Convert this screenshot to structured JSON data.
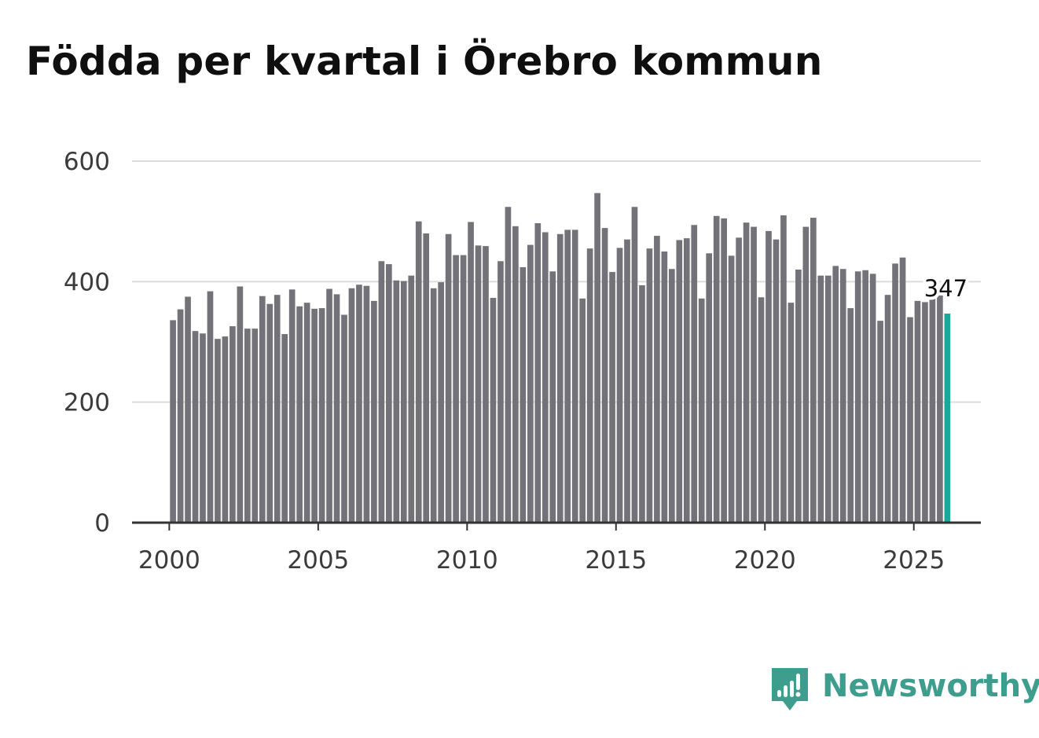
{
  "chart_data": {
    "type": "bar",
    "title": "Födda per kvartal i Örebro kommun",
    "xlabel": "",
    "ylabel": "",
    "ylim": [
      0,
      600
    ],
    "xlim": [
      1998.75,
      2027.25
    ],
    "y_ticks": [
      0,
      200,
      400,
      600
    ],
    "x_ticks": [
      2000,
      2005,
      2010,
      2015,
      2020,
      2025
    ],
    "grid": true,
    "start_year": 2000,
    "quarters_per_year": 4,
    "bar_color": "#737278",
    "highlight_color": "#1aa89a",
    "highlight_index": 104,
    "last_value_label": "347",
    "values": [
      336,
      354,
      375,
      318,
      314,
      384,
      305,
      309,
      326,
      392,
      322,
      322,
      376,
      363,
      378,
      313,
      387,
      359,
      365,
      355,
      356,
      388,
      379,
      345,
      389,
      395,
      393,
      368,
      434,
      429,
      402,
      401,
      410,
      500,
      480,
      389,
      399,
      479,
      444,
      444,
      499,
      460,
      459,
      373,
      434,
      524,
      492,
      424,
      461,
      497,
      482,
      417,
      479,
      486,
      486,
      372,
      455,
      547,
      489,
      416,
      456,
      470,
      524,
      394,
      455,
      476,
      450,
      421,
      469,
      472,
      494,
      372,
      447,
      509,
      505,
      443,
      473,
      498,
      491,
      374,
      484,
      470,
      510,
      365,
      420,
      491,
      506,
      410,
      410,
      426,
      421,
      356,
      417,
      419,
      413,
      335,
      378,
      430,
      440,
      341,
      368,
      366,
      372,
      382,
      347
    ]
  },
  "branding": {
    "name": "Newsworthy",
    "logo_icon": "bar-chart-speech-bubble-icon",
    "color": "#3f9d8e"
  }
}
